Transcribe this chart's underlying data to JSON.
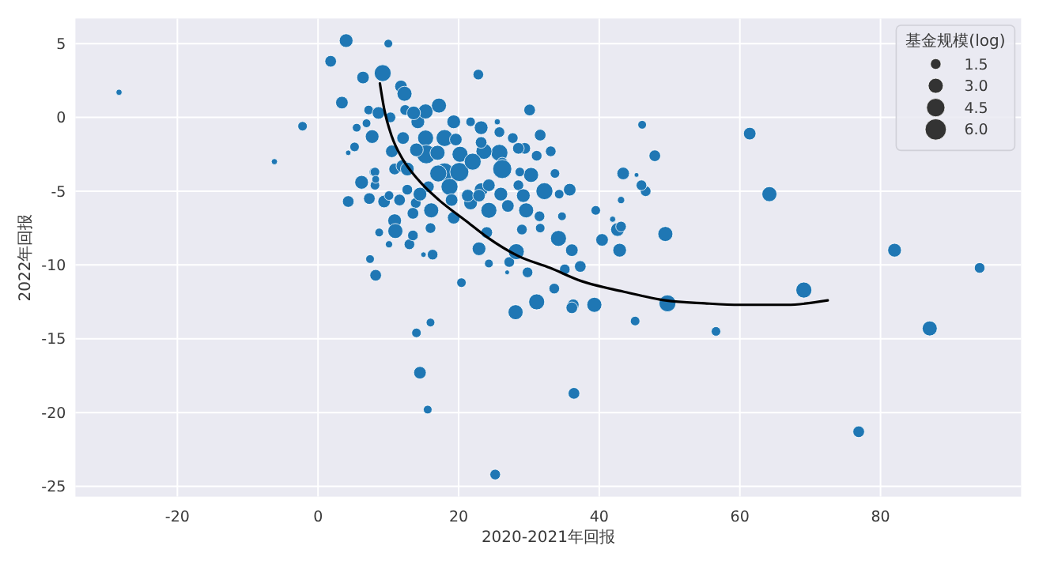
{
  "chart_data": {
    "type": "bubble",
    "xlabel": "2020-2021年回报",
    "ylabel": "2022年回报",
    "legend_title": "基金规模(log)",
    "grid": true,
    "xlim": [
      -34.5,
      100
    ],
    "ylim": [
      -25.7,
      6.7
    ],
    "xticks": [
      -20,
      0,
      20,
      40,
      60,
      80
    ],
    "yticks": [
      -25,
      -20,
      -15,
      -10,
      -5,
      0,
      5
    ],
    "size_legend": [
      1.5,
      {
        "value": 3,
        "label": "3.0"
      },
      4.5,
      {
        "value": 6,
        "label": "6.0"
      }
    ],
    "series": [
      {
        "color": "#1f77b4",
        "x": [
          -28.3,
          -6.2,
          -2.2,
          4.0,
          10.0,
          1.8,
          3.4,
          6.4,
          9.2,
          11.8,
          12.3,
          22.8,
          4.3,
          6.2,
          7.3,
          9.4,
          8.1,
          7.9,
          10.9,
          11,
          8.7,
          10.1,
          7.4,
          8.2,
          13,
          13.5,
          16,
          16.3,
          15,
          19.3,
          16.1,
          20.4,
          22.9,
          28.1,
          14,
          16,
          14.5,
          15.6,
          25.2,
          21.7,
          24.3,
          24,
          24.3,
          27.2,
          26.9,
          28.2,
          31.1,
          33.6,
          36.3,
          36.1,
          39.3,
          36.4,
          45.1,
          49.7,
          29.8,
          34.2,
          36.1,
          37.3,
          35.1,
          40.4,
          42.9,
          42.6,
          43.1,
          39.5,
          43.1,
          41.9,
          46.6,
          46.0,
          49.4,
          61.4,
          64.2,
          82,
          94.1,
          69.1,
          87,
          76.9,
          56.6,
          34.7,
          31.6,
          31.5,
          29.6,
          35.8,
          34.3,
          32.2,
          33.7,
          30.3,
          33.1,
          31.6,
          30.1,
          29.4,
          43.4,
          45.3,
          47.9,
          46.1,
          5.5,
          5.2,
          7.7,
          7.2,
          8.6,
          10.3,
          10.5,
          10.9,
          12,
          12.4,
          14.2,
          15.3,
          17.2,
          15.3,
          18,
          15.4,
          18,
          20.1,
          19.6,
          19.3,
          21.7,
          23.2,
          25.5,
          25.8,
          25.8,
          26.2,
          26.2,
          23.6,
          23.2,
          27.7,
          28.5,
          28.5,
          29.2,
          31.1,
          28.7,
          23.2,
          24.3,
          21.3,
          18.7,
          15.7,
          12.7,
          13.9,
          6.9,
          8.1,
          8.2,
          12.1,
          13.6,
          22.9,
          11.6,
          10.1,
          14.5,
          13.5,
          17.1,
          12.7,
          20.2,
          22,
          17,
          14,
          19,
          27,
          26,
          29,
          4.3
        ],
        "values": [
          1.7,
          -3.0,
          -0.6,
          5.2,
          5.0,
          3.8,
          1.0,
          2.7,
          3.0,
          2.1,
          1.6,
          2.9,
          -5.7,
          -4.4,
          -5.5,
          -5.7,
          -4.6,
          -3.7,
          -7.0,
          -7.7,
          -7.8,
          -8.6,
          -9.6,
          -10.7,
          -8.6,
          -8.0,
          -7.5,
          -9.3,
          -9.3,
          -6.8,
          -6.3,
          -11.2,
          -8.9,
          -13.2,
          -14.6,
          -13.9,
          -17.3,
          -19.8,
          -24.2,
          -5.8,
          -6.3,
          -7.8,
          -9.9,
          -9.8,
          -10.5,
          -9.1,
          -12.5,
          -11.6,
          -12.7,
          -12.9,
          -12.7,
          -18.7,
          -13.8,
          -12.6,
          -10.5,
          -8.2,
          -9.0,
          -10.1,
          -10.3,
          -8.3,
          -9.0,
          -7.6,
          -7.4,
          -6.3,
          -5.6,
          -6.9,
          -5.0,
          -4.6,
          -7.9,
          -1.1,
          -5.2,
          -9.0,
          -10.2,
          -11.7,
          -14.3,
          -21.3,
          -14.5,
          -6.7,
          -7.5,
          -6.7,
          -6.3,
          -4.9,
          -5.2,
          -5.0,
          -3.8,
          -3.9,
          -2.3,
          -1.2,
          0.5,
          -2.1,
          -3.8,
          -3.9,
          -2.6,
          -0.5,
          -0.7,
          -2.0,
          -1.3,
          0.5,
          0.3,
          0.0,
          -2.3,
          -3.5,
          -3.3,
          0.5,
          -0.3,
          0.4,
          0.8,
          -1.4,
          -1.4,
          -2.5,
          -3.7,
          -3.7,
          -1.5,
          -0.3,
          -0.3,
          -0.7,
          -0.3,
          -1.0,
          -2.4,
          -3.1,
          -3.5,
          -2.3,
          -1.7,
          -1.4,
          -2.1,
          -4.6,
          -5.3,
          -2.6,
          -3.7,
          -4.9,
          -4.6,
          -5.3,
          -4.7,
          -4.7,
          -4.9,
          -5.8,
          -0.4,
          -3.7,
          -4.2,
          -1.4,
          0.3,
          -5.3,
          -5.6,
          -5.3,
          -5.2,
          -6.5,
          -3.8,
          -3.5,
          -2.5,
          -3.0,
          -2.4,
          -2.2,
          -5.6,
          -6.0,
          -5.2,
          -7.6,
          -2.4
        ],
        "sizes": [
          0.5,
          0.5,
          1.2,
          2.5,
          1.0,
          1.8,
          2.1,
          2.1,
          3.8,
          2.1,
          3.0,
          1.5,
          1.8,
          2.5,
          1.8,
          2.1,
          1.2,
          1.0,
          2.5,
          3.0,
          1.0,
          0.7,
          1.0,
          1.8,
          1.5,
          1.5,
          1.5,
          1.5,
          0.4,
          2.1,
          3.0,
          1.2,
          2.5,
          3.0,
          1.2,
          1.0,
          2.1,
          1.0,
          1.5,
          2.5,
          3.4,
          1.8,
          1.0,
          1.5,
          0.3,
          3.4,
          3.4,
          1.5,
          1.8,
          1.8,
          3.0,
          1.8,
          1.2,
          3.8,
          1.5,
          3.4,
          2.1,
          1.8,
          1.5,
          2.1,
          2.5,
          2.5,
          1.5,
          1.2,
          0.7,
          0.5,
          1.5,
          1.5,
          3.0,
          2.1,
          3.0,
          2.5,
          1.5,
          3.4,
          3.0,
          1.8,
          1.2,
          1.0,
          1.2,
          1.5,
          3.0,
          2.1,
          1.2,
          3.8,
          1.2,
          3.0,
          1.5,
          1.8,
          1.8,
          1.8,
          2.1,
          0.3,
          1.8,
          1.0,
          1.0,
          1.2,
          2.5,
          1.2,
          2.1,
          1.5,
          2.1,
          1.8,
          2.1,
          1.5,
          2.5,
          3.0,
          3.0,
          3.4,
          3.8,
          4.8,
          4.4,
          4.8,
          2.1,
          2.5,
          1.2,
          2.5,
          0.5,
          1.5,
          3.8,
          1.8,
          4.8,
          3.4,
          1.8,
          1.5,
          1.8,
          1.5,
          2.5,
          1.5,
          1.2,
          2.5,
          2.1,
          2.1,
          3.8,
          1.8,
          1.5,
          1.5,
          1.0,
          1.2,
          0.8,
          2.1,
          2.5,
          2.1,
          1.8,
          1.2,
          2.5,
          1.8,
          3.8,
          2.5,
          3.4,
          3.8,
          3.0,
          2.5,
          2.1,
          2.1,
          2.5,
          1.5,
          0.4
        ]
      },
      {
        "type": "line",
        "color": "#000000",
        "x": [
          8.8,
          9.4,
          10.5,
          12,
          14.2,
          17.2,
          21,
          24,
          28.5,
          33,
          37.5,
          43.4,
          49.4,
          55,
          60,
          66.7,
          72.5
        ],
        "values": [
          2.3,
          0.6,
          -1.3,
          -2.8,
          -4.2,
          -5.6,
          -7.0,
          -8.1,
          -9.4,
          -10.2,
          -11.1,
          -11.8,
          -12.4,
          -12.6,
          -12.7,
          -12.7,
          -12.4
        ]
      }
    ]
  }
}
